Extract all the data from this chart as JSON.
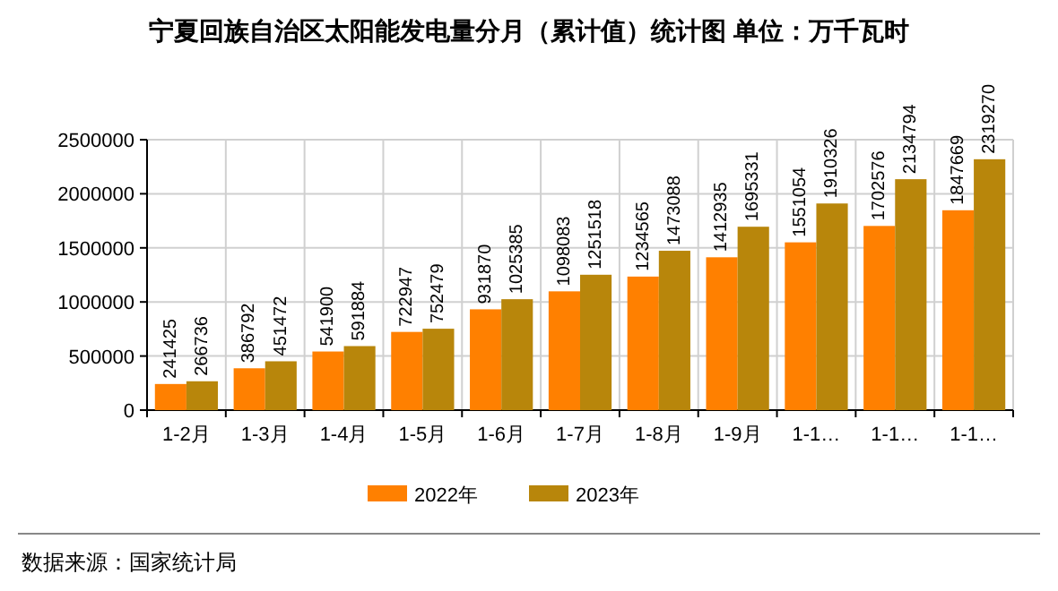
{
  "chart_data": {
    "type": "bar",
    "title": "宁夏回族自治区太阳能发电量分月（累计值）统计图 单位：万千瓦时",
    "categories": [
      "1-2月",
      "1-3月",
      "1-4月",
      "1-5月",
      "1-6月",
      "1-7月",
      "1-8月",
      "1-9月",
      "1-1…",
      "1-1…",
      "1-1…"
    ],
    "series": [
      {
        "name": "2022年",
        "color": "#ff8000",
        "values": [
          241425,
          386792,
          541900,
          722947,
          931870,
          1098083,
          1234565,
          1412935,
          1551054,
          1702576,
          1847669
        ]
      },
      {
        "name": "2023年",
        "color": "#b8860b",
        "values": [
          266736,
          451472,
          591884,
          752479,
          1025385,
          1251518,
          1473088,
          1695331,
          1910326,
          2134794,
          2319270
        ]
      }
    ],
    "ylim": [
      0,
      2500000
    ],
    "yticks": [
      0,
      500000,
      1000000,
      1500000,
      2000000,
      2500000
    ],
    "grid": true,
    "legend": "bottom",
    "data_labels": true,
    "annotations": [
      "数据来源：国家统计局"
    ]
  }
}
